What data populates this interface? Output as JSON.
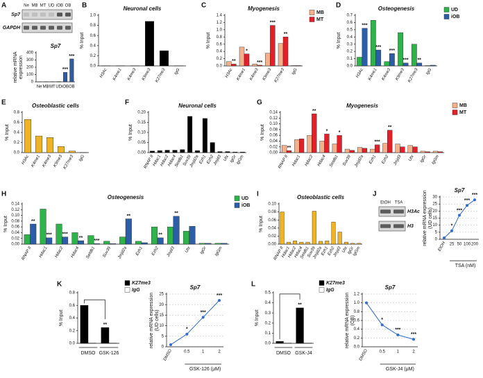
{
  "chart_data": [
    {
      "type": "bar",
      "label": "A",
      "gel": {
        "lanes": [
          "Ne",
          "MB",
          "MT",
          "UD",
          "iOB",
          "OB"
        ],
        "rows": [
          "Sp7",
          "GAPDH"
        ]
      },
      "title": "Sp7",
      "ylabel": "relative mRNA",
      "ylabel_note": "expression",
      "categories": [
        "Ne",
        "MB",
        "MT",
        "UD",
        "iOB",
        "OB"
      ],
      "values": [
        1,
        2,
        2,
        4,
        130,
        315
      ],
      "color": "#2e5da8",
      "stars": [
        null,
        null,
        null,
        null,
        "***",
        "***"
      ],
      "ylim": [
        0,
        400
      ],
      "yticks": [
        0,
        100,
        200,
        300,
        400
      ]
    },
    {
      "type": "bar",
      "label": "B",
      "title": "Neuronal cells",
      "ylabel": "% Input",
      "categories": [
        "H3Ac",
        "K4me1",
        "K4me3",
        "K9me3",
        "K27me3",
        "IgG"
      ],
      "values": [
        0.003,
        0.003,
        0.003,
        0.88,
        0.3,
        0.003
      ],
      "color": "#000000",
      "ylim": [
        0,
        1
      ],
      "yticks": [
        {
          "value": 0,
          "label": "0.0"
        },
        0.2,
        0.4,
        0.6,
        0.8,
        {
          "value": 1,
          "label": "1.0"
        }
      ]
    },
    {
      "type": "bar",
      "label": "C",
      "title": "Myogenesis",
      "ylabel": "% Input",
      "categories": [
        "H3Ac",
        "K4me1",
        "K4me3",
        "K9me3",
        "K27me3",
        "IgG"
      ],
      "series": [
        {
          "name": "MB",
          "color": "#f4b08a",
          "values": [
            0.12,
            0.52,
            0.05,
            0.35,
            0.62,
            0.01
          ]
        },
        {
          "name": "MT",
          "color": "#e3202a",
          "values": [
            0.05,
            0.33,
            0.02,
            1.12,
            0.8,
            0.01
          ],
          "stars": [
            "**",
            "*",
            "***",
            "***",
            "**",
            null
          ]
        }
      ],
      "ylim": [
        0,
        1.4
      ],
      "yticks": [
        {
          "value": 0,
          "label": "0.0"
        },
        0.2,
        0.4,
        0.6,
        0.8,
        {
          "value": 1,
          "label": "1.0"
        },
        1.2,
        1.4
      ]
    },
    {
      "type": "bar",
      "label": "D",
      "title": "Osteogenesis",
      "ylabel": "% Input",
      "categories": [
        "H3Ac",
        "K4me1",
        "K4me3",
        "K9me3",
        "K27me3",
        "IgG"
      ],
      "series": [
        {
          "name": "UD",
          "color": "#2db34a",
          "values": [
            0.12,
            0.63,
            0.06,
            0.46,
            0.3,
            0.005
          ]
        },
        {
          "name": "iOB",
          "color": "#2e5da8",
          "values": [
            0.52,
            0.22,
            0.17,
            0.04,
            0.04,
            0.01
          ],
          "stars": [
            "***",
            "***",
            "***",
            "***",
            "**",
            null
          ]
        }
      ],
      "ylim": [
        0,
        0.7
      ],
      "yticks": [
        {
          "value": 0,
          "label": "0.0"
        },
        0.1,
        0.2,
        0.3,
        0.4,
        0.5,
        0.6,
        0.7
      ]
    },
    {
      "type": "bar",
      "label": "E",
      "title": "Osteoblastic cells",
      "ylabel": "% Input",
      "categories": [
        "H3Ac",
        "K4me1",
        "K4me3",
        "K9me3",
        "K27me3",
        "IgG"
      ],
      "values": [
        0.66,
        0.33,
        0.3,
        0.12,
        0.03,
        0.003
      ],
      "color": "#f0b323",
      "ylim": [
        0,
        0.8
      ],
      "yticks": [
        {
          "value": 0,
          "label": "0.0"
        },
        0.2,
        0.4,
        0.6,
        0.8
      ]
    },
    {
      "type": "bar",
      "label": "F",
      "title": "Neuronal cells",
      "ylabel": "% Input",
      "categories": [
        "RNAP II",
        "Hdac1",
        "Hdac2",
        "Hdac4",
        "Setdb1",
        "Suv39",
        "Jmjd2a",
        "Ezh1",
        "Ezh2",
        "Jmjd3",
        "Utx",
        "IgGr",
        "IgGm"
      ],
      "values": [
        0.008,
        0.01,
        0.012,
        0.012,
        0.015,
        0.18,
        0.01,
        0.17,
        0.05,
        0.005,
        0.005,
        0.003,
        0.003
      ],
      "color": "#000000",
      "ylim": [
        0,
        0.2
      ],
      "yticks": [
        {
          "value": 0,
          "label": "0.00"
        },
        0.05,
        {
          "value": 0.1,
          "label": "0.10"
        },
        0.15,
        {
          "value": 0.2,
          "label": "0.20"
        }
      ]
    },
    {
      "type": "bar",
      "label": "G",
      "title": "Myogenesis",
      "ylabel": "% Input",
      "categories": [
        "RNAP II",
        "Hdac1",
        "Hdac2",
        "Hdac4",
        "Setdb1",
        "Suv39",
        "Jmjd2a",
        "Ezh1",
        "Ezh2",
        "Jmjd3",
        "Utx",
        "IgGr",
        "IgGm"
      ],
      "series": [
        {
          "name": "MB",
          "color": "#f4b08a",
          "values": [
            0.025,
            0.045,
            0.06,
            0.04,
            0.03,
            0.012,
            0.018,
            0.012,
            0.032,
            0.03,
            0.025,
            0.005,
            0.005
          ]
        },
        {
          "name": "MT",
          "color": "#e3202a",
          "values": [
            0.007,
            0.048,
            0.135,
            0.065,
            0.06,
            0.008,
            0.015,
            0.027,
            0.078,
            0.02,
            0.02,
            0.003,
            0.003
          ],
          "stars": [
            "**",
            null,
            "**",
            "*",
            "*",
            null,
            null,
            "***",
            "**",
            null,
            null,
            null,
            null
          ]
        }
      ],
      "ylim": [
        0,
        0.14
      ],
      "yticks": [
        {
          "value": 0,
          "label": "0.00"
        },
        0.02,
        0.04,
        0.06,
        0.08,
        {
          "value": 0.1,
          "label": "0.10"
        },
        0.12,
        0.14
      ]
    },
    {
      "type": "bar",
      "label": "H",
      "title": "Osteogenesis",
      "ylabel": "% Input",
      "categories": [
        "RNAP II",
        "Hdac1",
        "Hdac2",
        "Hdac4",
        "Setdb1",
        "Suv39",
        "Jmjd2a",
        "Ezh1",
        "Ezh2",
        "Jmjd3",
        "Utx",
        "IgGr",
        "IgGm"
      ],
      "series": [
        {
          "name": "UD",
          "color": "#2db34a",
          "values": [
            0.033,
            0.122,
            0.07,
            0.04,
            0.03,
            0.01,
            0.025,
            0.01,
            0.06,
            0.06,
            0.045,
            0.003,
            0.003
          ]
        },
        {
          "name": "iOB",
          "color": "#2e5da8",
          "values": [
            0.07,
            0.022,
            0.025,
            0.012,
            0.002,
            0.002,
            0.088,
            0.005,
            0.022,
            0.097,
            0.062,
            0.003,
            0.003
          ],
          "stars": [
            "**",
            "***",
            "***",
            "**",
            "***",
            null,
            "**",
            null,
            "**",
            "**",
            null,
            null,
            null
          ]
        }
      ],
      "ylim": [
        0,
        0.14
      ],
      "yticks": [
        {
          "value": 0,
          "label": "0.00"
        },
        0.02,
        0.04,
        0.06,
        0.08,
        {
          "value": 0.1,
          "label": "0.10"
        },
        0.12,
        0.14
      ]
    },
    {
      "type": "bar",
      "label": "I",
      "title": "Osteoblastic cells",
      "ylabel": "% Input",
      "categories": [
        "RNAP II",
        "Hdac1",
        "Hdac2",
        "Hdac4",
        "Setdb1",
        "Suv39",
        "Jmjd2a",
        "Ezh1",
        "Ezh2",
        "Jmjd3",
        "Utx",
        "IgGr",
        "IgGm"
      ],
      "values": [
        0.08,
        0.005,
        0.008,
        0.005,
        0.005,
        0.082,
        0.007,
        0.008,
        0.055,
        0.03,
        0.005,
        0.002,
        0.002
      ],
      "color": "#f0b323",
      "ylim": [
        0,
        0.1
      ],
      "yticks": [
        {
          "value": 0,
          "label": "0.00"
        },
        0.02,
        0.04,
        0.06,
        0.08,
        {
          "value": 0.1,
          "label": "0.10"
        }
      ]
    },
    {
      "type": "line",
      "label": "J",
      "gel": {
        "lanes": [
          "EtOH",
          "TSA"
        ],
        "rows": [
          "H3Ac",
          "H3"
        ]
      },
      "title": "Sp7",
      "ylabel": "relative mRNA expression",
      "ylabel_note": "(UD cells)",
      "xlabel": "TSA (nM)",
      "categories": [
        "EtOH",
        "25",
        "50",
        "100",
        "200"
      ],
      "values": [
        1,
        6,
        17,
        24,
        28
      ],
      "color": "#2e6bd6",
      "stars": [
        null,
        "*",
        "***",
        "***",
        "***"
      ],
      "ylim": [
        0,
        30
      ],
      "yticks": [
        0,
        5,
        10,
        15,
        20,
        25,
        30
      ],
      "grid": true
    },
    {
      "type": "bar",
      "label": "K",
      "ylabel": "% Input",
      "categories": [
        "DMSO",
        "GSK-126"
      ],
      "series": [
        {
          "name": "K27me3",
          "color": "#000000",
          "values": [
            0.6,
            0.25
          ],
          "stars": [
            null,
            "**"
          ]
        },
        {
          "name": "IgG",
          "color": "#ffffff",
          "values": [
            0.005,
            0.005
          ]
        }
      ],
      "ylim": [
        0,
        0.8
      ],
      "yticks": [
        {
          "value": 0,
          "label": "0.0"
        },
        0.2,
        0.4,
        0.6,
        0.8
      ]
    },
    {
      "type": "line",
      "title": "Sp7",
      "ylabel": "relative mRNA expression",
      "ylabel_note": "(UD cells)",
      "xlabel": "GSK-126 (μM)",
      "categories": [
        "DMSO",
        "0.5",
        "1",
        "2"
      ],
      "values": [
        1,
        6,
        14,
        22
      ],
      "color": "#2e6bd6",
      "stars": [
        null,
        "*",
        "***",
        "***"
      ],
      "ylim": [
        0,
        25
      ],
      "yticks": [
        0,
        5,
        10,
        15,
        20,
        25
      ],
      "grid": true
    },
    {
      "type": "bar",
      "label": "L",
      "ylabel": "% Input",
      "categories": [
        "DMSO",
        "GSK-J4"
      ],
      "series": [
        {
          "name": "K27me3",
          "color": "#000000",
          "values": [
            0.02,
            0.35
          ],
          "stars": [
            null,
            "**"
          ]
        },
        {
          "name": "IgG",
          "color": "#ffffff",
          "values": [
            0.005,
            0.005
          ]
        }
      ],
      "ylim": [
        0,
        0.5
      ],
      "yticks": [
        {
          "value": 0,
          "label": "0.0"
        },
        0.1,
        0.2,
        0.3,
        0.4,
        0.5
      ]
    },
    {
      "type": "line",
      "title": "Sp7",
      "ylabel": "relative mRNA expression",
      "ylabel_note": "(OB)",
      "xlabel": "GSK-J4 (μM)",
      "categories": [
        "DMSO",
        "0.5",
        "1",
        "2"
      ],
      "values": [
        1.0,
        0.5,
        0.27,
        0.17
      ],
      "color": "#2e6bd6",
      "stars": [
        null,
        "*",
        "***",
        "***"
      ],
      "ylim": [
        0,
        1.2
      ],
      "yticks": [
        {
          "value": 0,
          "label": "0.0"
        },
        0.2,
        0.4,
        0.6,
        0.8,
        {
          "value": 1,
          "label": "1.0"
        },
        1.2
      ],
      "grid": true
    }
  ]
}
